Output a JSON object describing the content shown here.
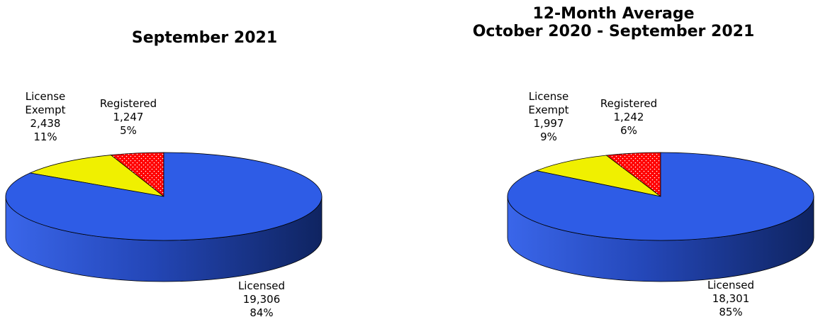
{
  "chart_data": [
    {
      "type": "pie",
      "title": [
        "September 2021"
      ],
      "slices": [
        {
          "label": [
            "Licensed"
          ],
          "value": 19306,
          "value_text": "19,306",
          "percent": "84%",
          "color": "#2e5ce6"
        },
        {
          "label": [
            "License",
            "Exempt"
          ],
          "value": 2438,
          "value_text": "2,438",
          "percent": "11%",
          "color": "#f0f000"
        },
        {
          "label": [
            "Registered"
          ],
          "value": 1247,
          "value_text": "1,247",
          "percent": "5%",
          "color": "#ff0000"
        }
      ]
    },
    {
      "type": "pie",
      "title": [
        "12-Month Average",
        "October 2020 - September 2021"
      ],
      "slices": [
        {
          "label": [
            "Licensed"
          ],
          "value": 18301,
          "value_text": "18,301",
          "percent": "85%",
          "color": "#2e5ce6"
        },
        {
          "label": [
            "License",
            "Exempt"
          ],
          "value": 1997,
          "value_text": "1,997",
          "percent": "9%",
          "color": "#f0f000"
        },
        {
          "label": [
            "Registered"
          ],
          "value": 1242,
          "value_text": "1,242",
          "percent": "6%",
          "color": "#ff0000"
        }
      ]
    }
  ]
}
